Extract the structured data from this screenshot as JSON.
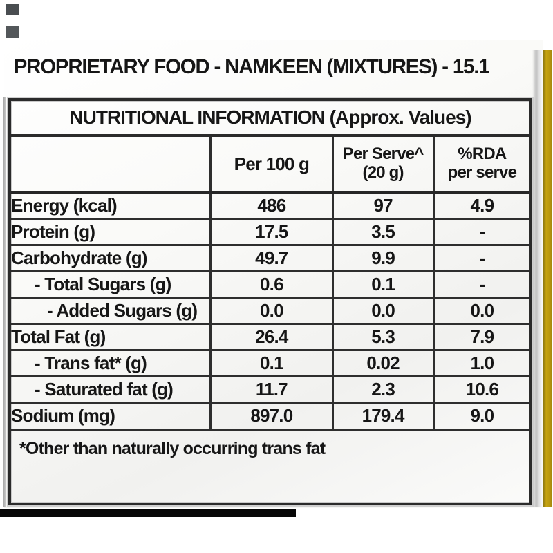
{
  "label": {
    "category_title": "PROPRIETARY FOOD - NAMKEEN (MIXTURES) - 15.1",
    "table": {
      "heading": "NUTRITIONAL INFORMATION (Approx. Values)",
      "columns": {
        "per_100g": "Per 100 g",
        "per_serve_line1": "Per Serve^",
        "per_serve_line2": "(20 g)",
        "rda_line1": "%RDA",
        "rda_line2": "per serve"
      },
      "rows": [
        {
          "label": "Energy (kcal)",
          "per_100g": "486",
          "per_serve": "97",
          "rda_per_serve": "4.9"
        },
        {
          "label": "Protein (g)",
          "per_100g": "17.5",
          "per_serve": "3.5",
          "rda_per_serve": "-"
        },
        {
          "label": "Carbohydrate (g)",
          "per_100g": "49.7",
          "per_serve": "9.9",
          "rda_per_serve": "-"
        },
        {
          "label": "- Total Sugars (g)",
          "per_100g": "0.6",
          "per_serve": "0.1",
          "rda_per_serve": "-"
        },
        {
          "label": "- Added Sugars (g)",
          "per_100g": "0.0",
          "per_serve": "0.0",
          "rda_per_serve": "0.0"
        },
        {
          "label": "Total Fat (g)",
          "per_100g": "26.4",
          "per_serve": "5.3",
          "rda_per_serve": "7.9"
        },
        {
          "label": "- Trans fat* (g)",
          "per_100g": "0.1",
          "per_serve": "0.02",
          "rda_per_serve": "1.0"
        },
        {
          "label": "- Saturated fat (g)",
          "per_100g": "11.7",
          "per_serve": "2.3",
          "rda_per_serve": "10.6"
        },
        {
          "label": "Sodium (mg)",
          "per_100g": "897.0",
          "per_serve": "179.4",
          "rda_per_serve": "9.0"
        }
      ],
      "footnote": "*Other than naturally occurring trans fat"
    },
    "colors": {
      "accent_strip_yellow": "#bb9a10",
      "text_black": "#161616"
    }
  }
}
